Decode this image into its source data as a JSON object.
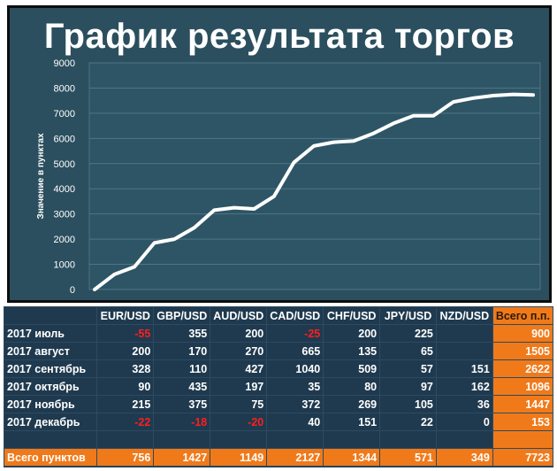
{
  "chart_data": {
    "type": "line",
    "title": "График результата торгов",
    "ylabel": "Значение  в пунктах",
    "xlabel": "",
    "ylim": [
      0,
      9000
    ],
    "yticks": [
      0,
      1000,
      2000,
      3000,
      4000,
      5000,
      6000,
      7000,
      8000,
      9000
    ],
    "grid": true,
    "legend": "none",
    "line_color": "#ffffff",
    "background": "#2b4f5e",
    "series": [
      {
        "values": [
          0,
          600,
          900,
          1850,
          2000,
          2450,
          3150,
          3250,
          3200,
          3700,
          5050,
          5700,
          5850,
          5900,
          6200,
          6600,
          6900,
          6900,
          7450,
          7600,
          7700,
          7750,
          7723
        ]
      }
    ]
  },
  "table": {
    "columns": [
      "",
      "EUR/USD",
      "GBP/USD",
      "AUD/USD",
      "CAD/USD",
      "CHF/USD",
      "JPY/USD",
      "NZD/USD",
      "Всего п.п."
    ],
    "rows": [
      {
        "label": "2017 июль",
        "cells": [
          "-55",
          "355",
          "200",
          "-25",
          "200",
          "225",
          "",
          "900"
        ]
      },
      {
        "label": "2017 август",
        "cells": [
          "200",
          "170",
          "270",
          "665",
          "135",
          "65",
          "",
          "1505"
        ]
      },
      {
        "label": "2017 сентябрь",
        "cells": [
          "328",
          "110",
          "427",
          "1040",
          "509",
          "57",
          "151",
          "2622"
        ]
      },
      {
        "label": "2017 октябрь",
        "cells": [
          "90",
          "435",
          "197",
          "35",
          "80",
          "97",
          "162",
          "1096"
        ]
      },
      {
        "label": "2017 ноябрь",
        "cells": [
          "215",
          "375",
          "75",
          "372",
          "269",
          "105",
          "36",
          "1447"
        ]
      },
      {
        "label": "2017 декабрь",
        "cells": [
          "-22",
          "-18",
          "-20",
          "40",
          "151",
          "22",
          "0",
          "153"
        ]
      },
      {
        "label": "",
        "cells": [
          "",
          "",
          "",
          "",
          "",
          "",
          "",
          ""
        ]
      }
    ],
    "footer": {
      "label": "Всего пунктов",
      "cells": [
        "756",
        "1427",
        "1149",
        "2127",
        "1344",
        "571",
        "349",
        "7723"
      ]
    },
    "colors": {
      "header_bg": "#1f3a4f",
      "total_bg": "#f07a1a",
      "negative": "#ff1e1e"
    }
  }
}
